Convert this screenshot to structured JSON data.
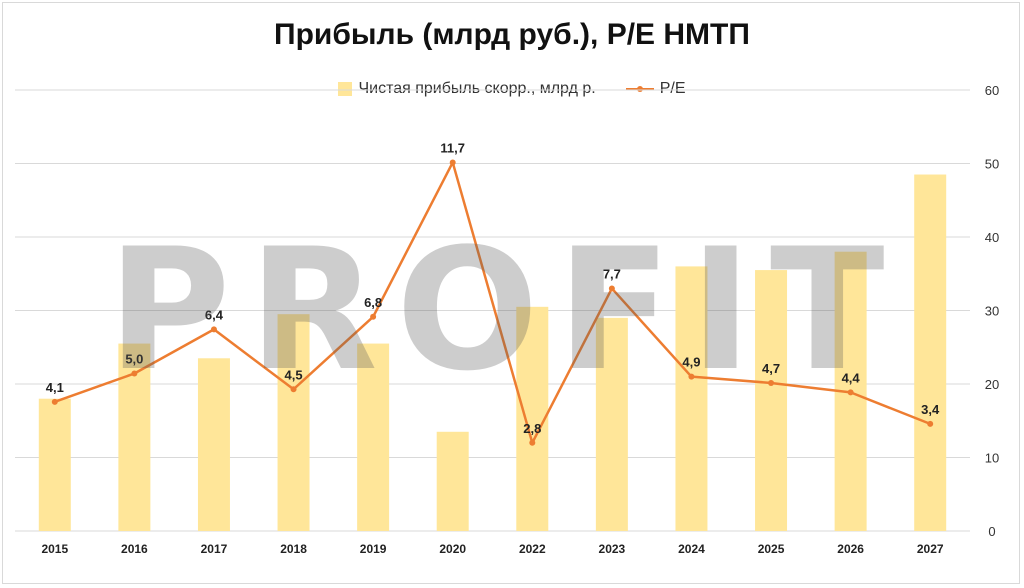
{
  "colors": {
    "bar": "#ffe699",
    "line": "#ed7d31",
    "grid": "#d9d9d9",
    "watermark": "#5a5a5a"
  },
  "watermark_text": "PROFIT",
  "chart_data": {
    "type": "bar",
    "title": "Прибыль (млрд руб.), P/E НМТП",
    "categories": [
      "2015",
      "2016",
      "2017",
      "2018",
      "2019",
      "2020",
      "2022",
      "2023",
      "2024",
      "2025",
      "2026",
      "2027"
    ],
    "series": [
      {
        "name": "Чистая прибыль скорр., млрд р.",
        "type": "bar",
        "axis": "right",
        "values": [
          18,
          25.5,
          23.5,
          29.5,
          25.5,
          13.5,
          30.5,
          29,
          36,
          35.5,
          38,
          48.5
        ]
      },
      {
        "name": "P/E",
        "type": "line",
        "axis": "hidden",
        "values": [
          4.1,
          5.0,
          6.4,
          4.5,
          6.8,
          11.7,
          2.8,
          7.7,
          4.9,
          4.7,
          4.4,
          3.4
        ],
        "labels": [
          "4,1",
          "5,0",
          "6,4",
          "4,5",
          "6,8",
          "11,7",
          "2,8",
          "7,7",
          "4,9",
          "4,7",
          "4,4",
          "3,4"
        ]
      }
    ],
    "y_right": {
      "min": 0,
      "max": 60,
      "ticks": [
        "0",
        "10",
        "20",
        "30",
        "40",
        "50",
        "60"
      ]
    },
    "line_axis_range": [
      0,
      14
    ],
    "grid": true,
    "legend_position": "top"
  }
}
